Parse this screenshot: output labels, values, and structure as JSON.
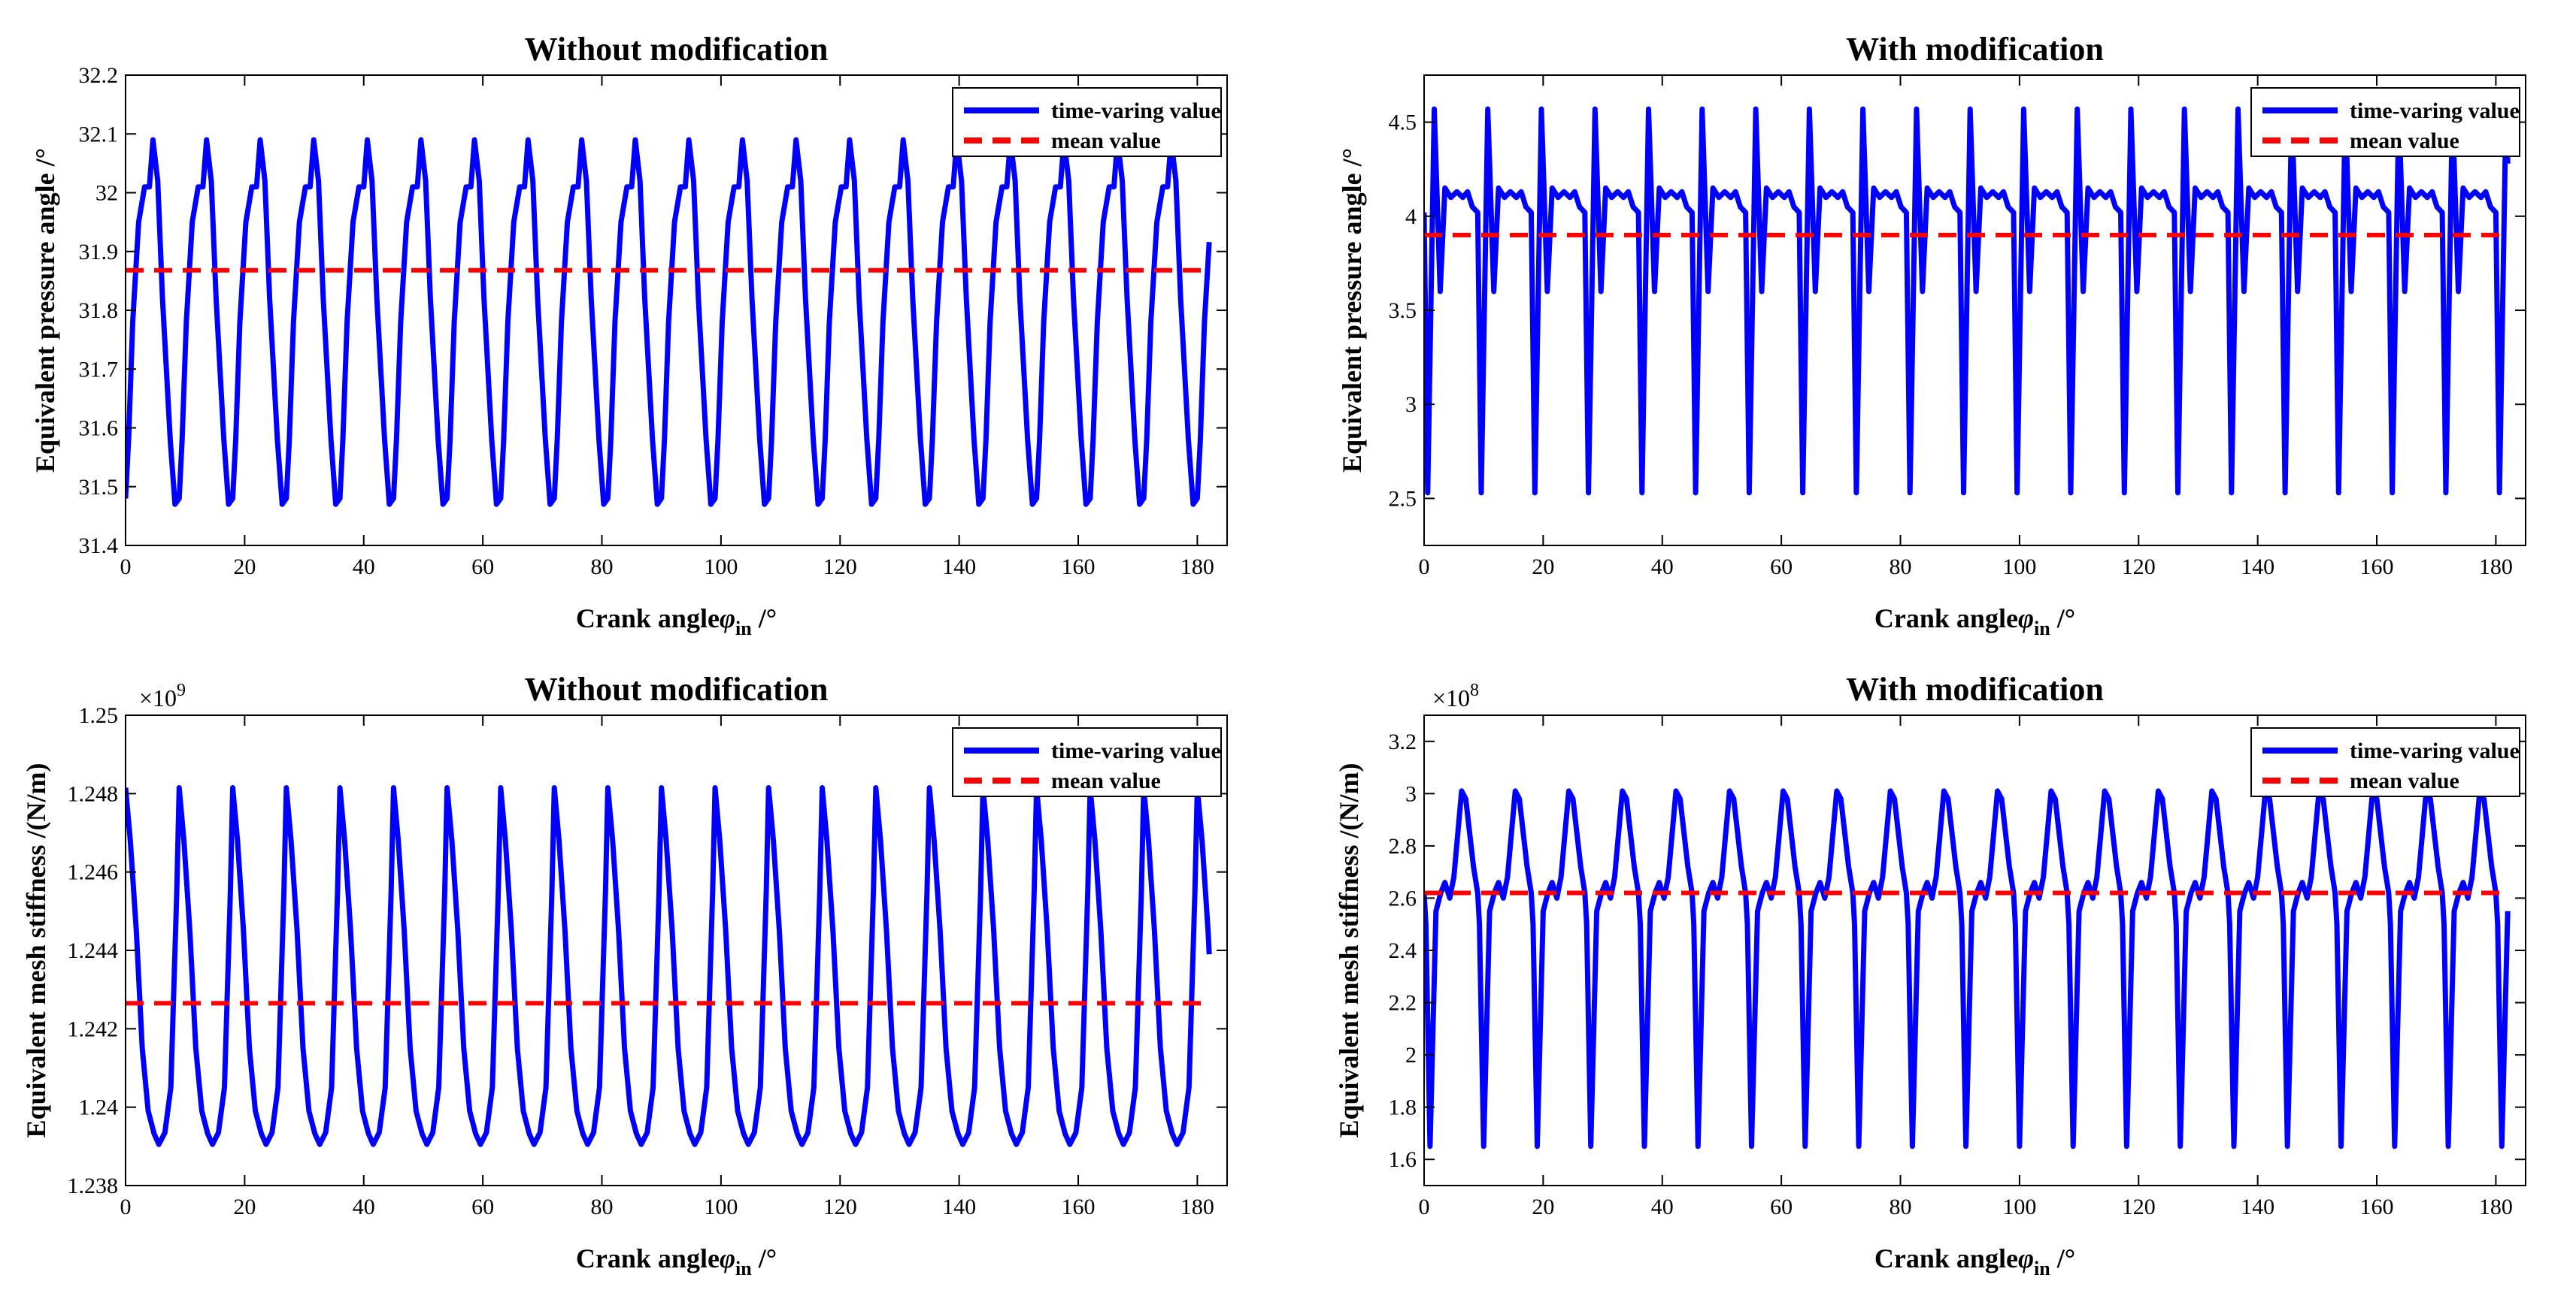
{
  "charts": [
    {
      "type": "line",
      "title": "Without modification",
      "xlabel_prefix": "Crank angle",
      "xlabel_symbol": "φ",
      "xlabel_sub": "in",
      "xlabel_unit": " /°",
      "ylabel": "Equivalent pressure angle /°",
      "exponent_base": "",
      "exponent_power": "",
      "xlim": [
        0,
        185
      ],
      "ylim": [
        31.4,
        32.2
      ],
      "xticks": [
        0,
        20,
        40,
        60,
        80,
        100,
        120,
        140,
        160,
        180
      ],
      "xtick_labels": [
        "0",
        "20",
        "40",
        "60",
        "80",
        "100",
        "120",
        "140",
        "160",
        "180"
      ],
      "yticks": [
        31.4,
        31.5,
        31.6,
        31.7,
        31.8,
        31.9,
        32.0,
        32.1,
        32.2
      ],
      "ytick_labels": [
        "31.4",
        "31.5",
        "31.6",
        "31.7",
        "31.8",
        "31.9",
        "32",
        "32.1",
        "32.2"
      ],
      "period": 9,
      "x_start": 0,
      "x_end": 182,
      "period_shape": [
        [
          0,
          31.48
        ],
        [
          0.5,
          31.58
        ],
        [
          1.2,
          31.78
        ],
        [
          2.2,
          31.95
        ],
        [
          3.2,
          32.01
        ],
        [
          4.0,
          32.01
        ],
        [
          4.6,
          32.09
        ],
        [
          5.4,
          32.02
        ],
        [
          6.2,
          31.82
        ],
        [
          7.5,
          31.58
        ],
        [
          8.3,
          31.47
        ],
        [
          9,
          31.48
        ]
      ],
      "mean": 31.868,
      "legend": [
        "time-varing value",
        "mean value"
      ]
    },
    {
      "type": "line",
      "title": "With modification",
      "xlabel_prefix": "Crank angle",
      "xlabel_symbol": "φ",
      "xlabel_sub": "in",
      "xlabel_unit": " /°",
      "ylabel": "Equivalent pressure angle /°",
      "exponent_base": "",
      "exponent_power": "",
      "xlim": [
        0,
        185
      ],
      "ylim": [
        2.25,
        4.75
      ],
      "xticks": [
        0,
        20,
        40,
        60,
        80,
        100,
        120,
        140,
        160,
        180
      ],
      "xtick_labels": [
        "0",
        "20",
        "40",
        "60",
        "80",
        "100",
        "120",
        "140",
        "160",
        "180"
      ],
      "yticks": [
        2.5,
        3.0,
        3.5,
        4.0,
        4.5
      ],
      "ytick_labels": [
        "2.5",
        "3",
        "3.5",
        "4",
        "4.5"
      ],
      "period": 9,
      "x_start": 0,
      "x_end": 182,
      "period_shape": [
        [
          0,
          4.02
        ],
        [
          0.6,
          2.53
        ],
        [
          1.7,
          4.57
        ],
        [
          2.7,
          3.6
        ],
        [
          3.5,
          4.15
        ],
        [
          4.5,
          4.1
        ],
        [
          5.5,
          4.13
        ],
        [
          6.5,
          4.1
        ],
        [
          7.3,
          4.13
        ],
        [
          8.1,
          4.05
        ],
        [
          9,
          4.02
        ]
      ],
      "mean": 3.9,
      "legend": [
        "time-varing value",
        "mean value"
      ]
    },
    {
      "type": "line",
      "title": "Without modification",
      "xlabel_prefix": "Crank angle",
      "xlabel_symbol": "φ",
      "xlabel_sub": "in",
      "xlabel_unit": " /°",
      "ylabel": "Equivalent mesh stiffness /(N/m)",
      "exponent_base": "×10",
      "exponent_power": "9",
      "xlim": [
        0,
        185
      ],
      "ylim": [
        1.238,
        1.25
      ],
      "xticks": [
        0,
        20,
        40,
        60,
        80,
        100,
        120,
        140,
        160,
        180
      ],
      "xtick_labels": [
        "0",
        "20",
        "40",
        "60",
        "80",
        "100",
        "120",
        "140",
        "160",
        "180"
      ],
      "yticks": [
        1.238,
        1.24,
        1.242,
        1.244,
        1.246,
        1.248,
        1.25
      ],
      "ytick_labels": [
        "1.238",
        "1.24",
        "1.242",
        "1.244",
        "1.246",
        "1.248",
        "1.25"
      ],
      "period": 9,
      "x_start": 0,
      "x_end": 182,
      "period_shape": [
        [
          0,
          1.24815
        ],
        [
          0.8,
          1.2468
        ],
        [
          1.8,
          1.2445
        ],
        [
          2.8,
          1.2415
        ],
        [
          3.8,
          1.2399
        ],
        [
          4.8,
          1.23932
        ],
        [
          5.6,
          1.23905
        ],
        [
          6.6,
          1.23935
        ],
        [
          7.6,
          1.2405
        ],
        [
          8.6,
          1.2455
        ],
        [
          9,
          1.24815
        ]
      ],
      "mean": 1.24265,
      "legend": [
        "time-varing value",
        "mean value"
      ]
    },
    {
      "type": "line",
      "title": "With modification",
      "xlabel_prefix": "Crank angle",
      "xlabel_symbol": "φ",
      "xlabel_sub": "in",
      "xlabel_unit": " /°",
      "ylabel": "Equivalent mesh stiffness /(N/m)",
      "exponent_base": "×10",
      "exponent_power": "8",
      "xlim": [
        0,
        185
      ],
      "ylim": [
        1.5,
        3.3
      ],
      "xticks": [
        0,
        20,
        40,
        60,
        80,
        100,
        120,
        140,
        160,
        180
      ],
      "xtick_labels": [
        "0",
        "20",
        "40",
        "60",
        "80",
        "100",
        "120",
        "140",
        "160",
        "180"
      ],
      "yticks": [
        1.6,
        1.8,
        2.0,
        2.2,
        2.4,
        2.6,
        2.8,
        3.0,
        3.2
      ],
      "ytick_labels": [
        "1.6",
        "1.8",
        "2",
        "2.2",
        "2.4",
        "2.6",
        "2.8",
        "3",
        "3.2"
      ],
      "period": 9,
      "x_start": 0,
      "x_end": 182,
      "period_shape": [
        [
          0,
          2.62
        ],
        [
          0.3,
          2.5
        ],
        [
          1.0,
          1.65
        ],
        [
          2.0,
          2.55
        ],
        [
          2.8,
          2.62
        ],
        [
          3.5,
          2.66
        ],
        [
          4.3,
          2.6
        ],
        [
          5.0,
          2.68
        ],
        [
          6.3,
          3.01
        ],
        [
          7.0,
          2.98
        ],
        [
          8.3,
          2.72
        ],
        [
          9,
          2.62
        ]
      ],
      "mean": 2.62,
      "legend": [
        "time-varing value",
        "mean value"
      ]
    }
  ],
  "colors": {
    "series": "#0000ff",
    "mean": "#ff0000",
    "axis": "#000000"
  }
}
